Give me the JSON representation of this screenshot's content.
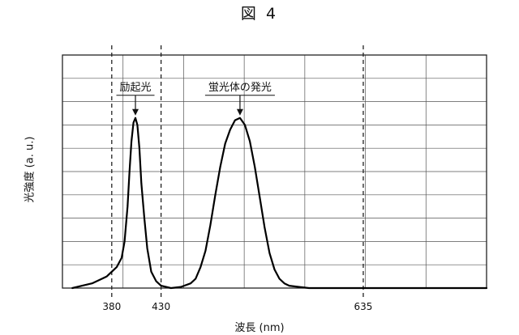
{
  "figure": {
    "label": "図 4"
  },
  "chart_data": {
    "type": "line",
    "title": "",
    "xlabel": "波長 (nm)",
    "ylabel": "光強度 (a. u.)",
    "xlim": [
      330,
      760
    ],
    "ylim": [
      0,
      1
    ],
    "grid": true,
    "x_ticks": [
      {
        "value": 380,
        "label": "380"
      },
      {
        "value": 430,
        "label": "430"
      },
      {
        "value": 635,
        "label": "635"
      }
    ],
    "vertical_markers": [
      380,
      430,
      635
    ],
    "series": [
      {
        "x": [
          340,
          350,
          360,
          370,
          375,
          380,
          385,
          390,
          393,
          396,
          398,
          400,
          402,
          404,
          406,
          408,
          410,
          413,
          416,
          420,
          425,
          430,
          440,
          450,
          460,
          465,
          470,
          475,
          480,
          485,
          490,
          495,
          500,
          505,
          510,
          515,
          520,
          525,
          530,
          535,
          540,
          545,
          550,
          555,
          560,
          570,
          580,
          600,
          650,
          700,
          760
        ],
        "y": [
          0.0,
          0.01,
          0.02,
          0.04,
          0.05,
          0.07,
          0.09,
          0.13,
          0.2,
          0.35,
          0.5,
          0.63,
          0.71,
          0.73,
          0.7,
          0.6,
          0.45,
          0.3,
          0.17,
          0.07,
          0.03,
          0.01,
          0.0,
          0.005,
          0.02,
          0.04,
          0.09,
          0.16,
          0.27,
          0.4,
          0.52,
          0.62,
          0.68,
          0.72,
          0.73,
          0.7,
          0.63,
          0.52,
          0.39,
          0.26,
          0.15,
          0.08,
          0.04,
          0.02,
          0.01,
          0.005,
          0.0,
          0.0,
          0.0,
          0.0,
          0.0
        ]
      }
    ],
    "annotations": [
      {
        "text": "励起光",
        "x": 404,
        "y": 0.73
      },
      {
        "text": "蛍光体の発光",
        "x": 510,
        "y": 0.73
      }
    ]
  }
}
